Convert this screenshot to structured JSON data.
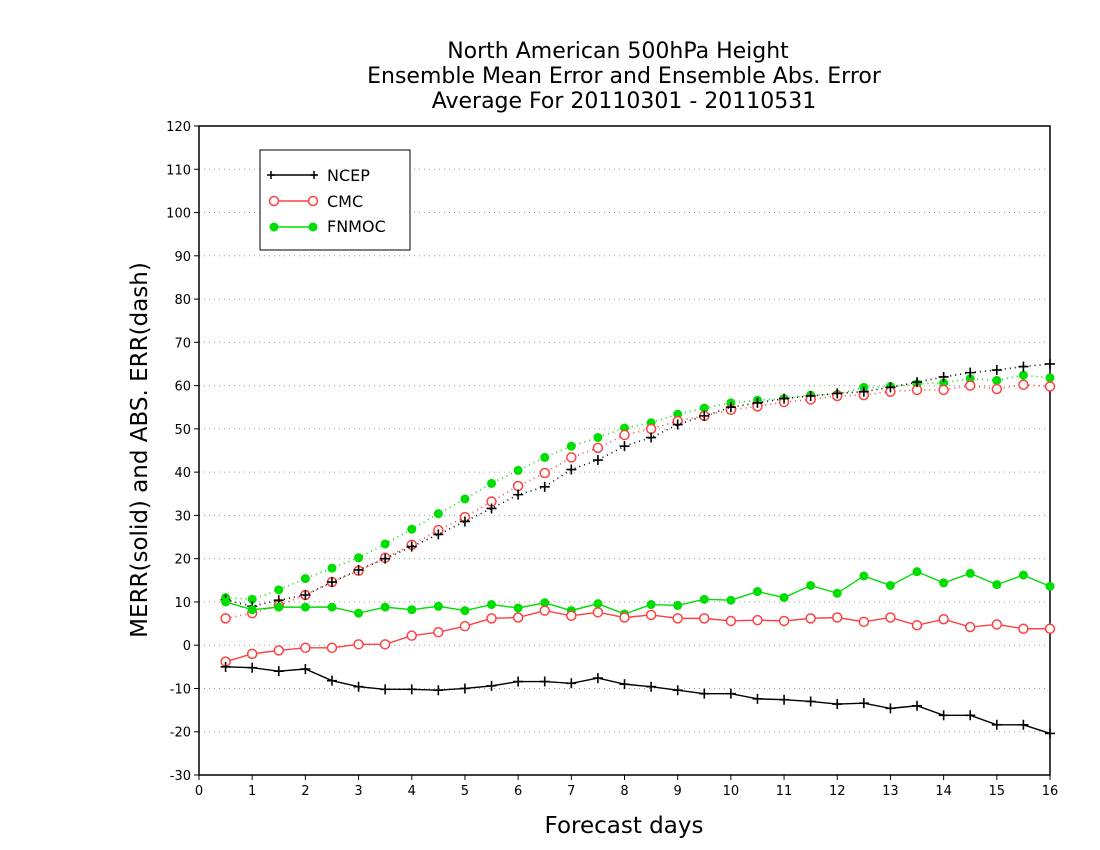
{
  "chart_data": {
    "type": "line",
    "title": [
      "North American 500hPa Height",
      "Ensemble Mean Error and Ensemble Abs. Error",
      "Average For 20110301 - 20110531"
    ],
    "xlabel": "Forecast days",
    "ylabel": "MERR(solid) and ABS. ERR(dash)",
    "xlim": [
      0,
      16
    ],
    "ylim": [
      -30,
      120
    ],
    "xticks": [
      0,
      1,
      2,
      3,
      4,
      5,
      6,
      7,
      8,
      9,
      10,
      11,
      12,
      13,
      14,
      15,
      16
    ],
    "yticks": [
      -30,
      -20,
      -10,
      0,
      10,
      20,
      30,
      40,
      50,
      60,
      70,
      80,
      90,
      100,
      110,
      120
    ],
    "grid": "horizontal-dotted",
    "legend_placement": "top-left",
    "x": [
      0.5,
      1.0,
      1.5,
      2.0,
      2.5,
      3.0,
      3.5,
      4.0,
      4.5,
      5.0,
      5.5,
      6.0,
      6.5,
      7.0,
      7.5,
      8.0,
      8.5,
      9.0,
      9.5,
      10.0,
      10.5,
      11.0,
      11.5,
      12.0,
      12.5,
      13.0,
      13.5,
      14.0,
      14.5,
      15.0,
      15.5,
      16.0
    ],
    "series": [
      {
        "name": "NCEP",
        "color": "#000000",
        "marker": "plus",
        "mean_error": [
          -5,
          -5.2,
          -6,
          -5.5,
          -8.2,
          -9.6,
          -10.2,
          -10.2,
          -10.4,
          -10,
          -9.4,
          -8.4,
          -8.4,
          -8.8,
          -7.6,
          -9,
          -9.6,
          -10.4,
          -11.2,
          -11.2,
          -12.4,
          -12.6,
          -13,
          -13.6,
          -13.4,
          -14.6,
          -14,
          -16.2,
          -16.2,
          -18.4,
          -18.4,
          -20.4
        ],
        "abs_error": [
          10.5,
          9,
          10.4,
          11.6,
          14.6,
          17.4,
          20,
          22.8,
          25.6,
          28.6,
          31.6,
          34.8,
          36.6,
          40.6,
          42.8,
          46,
          48,
          51,
          53,
          55,
          56,
          57,
          57.6,
          58.2,
          58.6,
          59.6,
          60.8,
          62,
          63,
          63.6,
          64.4,
          65
        ]
      },
      {
        "name": "CMC",
        "color": "#ff4040",
        "marker": "open-circle",
        "mean_error": [
          -3.8,
          -2,
          -1.2,
          -0.6,
          -0.6,
          0.2,
          0.2,
          2.2,
          3,
          4.4,
          6.2,
          6.4,
          8,
          6.8,
          7.6,
          6.4,
          7,
          6.2,
          6.2,
          5.6,
          5.8,
          5.6,
          6.2,
          6.4,
          5.4,
          6.4,
          4.6,
          6,
          4.2,
          4.8,
          3.8,
          3.8
        ]
      },
      {
        "name": "FNMOC",
        "color": "#00dd00",
        "marker": "filled-circle",
        "mean_error": [
          10,
          8.2,
          8.8,
          8.8,
          8.8,
          7.4,
          8.8,
          8.2,
          9,
          8,
          9.4,
          8.6,
          9.8,
          8,
          9.6,
          7.2,
          9.4,
          9.2,
          10.6,
          10.4,
          12.4,
          11,
          13.8,
          12,
          16,
          13.8,
          17,
          14.4,
          16.6,
          14,
          16.2,
          13.6
        ]
      }
    ]
  },
  "cmc_abs_error": [
    6.2,
    7.4,
    9.2,
    11.6,
    14.6,
    17.2,
    20.2,
    23.2,
    26.6,
    29.6,
    33.2,
    36.8,
    39.8,
    43.4,
    45.6,
    48.6,
    50,
    51.8,
    53,
    54.4,
    55.2,
    56.2,
    56.8,
    57.6,
    57.8,
    58.6,
    59,
    59,
    60,
    59.2,
    60.2,
    59.8
  ],
  "fnmoc_abs_error": [
    11,
    10.6,
    12.8,
    15.4,
    17.8,
    20.2,
    23.4,
    26.8,
    30.4,
    33.8,
    37.4,
    40.4,
    43.4,
    46,
    48,
    50.2,
    51.4,
    53.4,
    54.8,
    56,
    56.6,
    57,
    57.8,
    58,
    59.6,
    59.8,
    60.4,
    60.6,
    61.6,
    61.2,
    62.4,
    61.8
  ]
}
